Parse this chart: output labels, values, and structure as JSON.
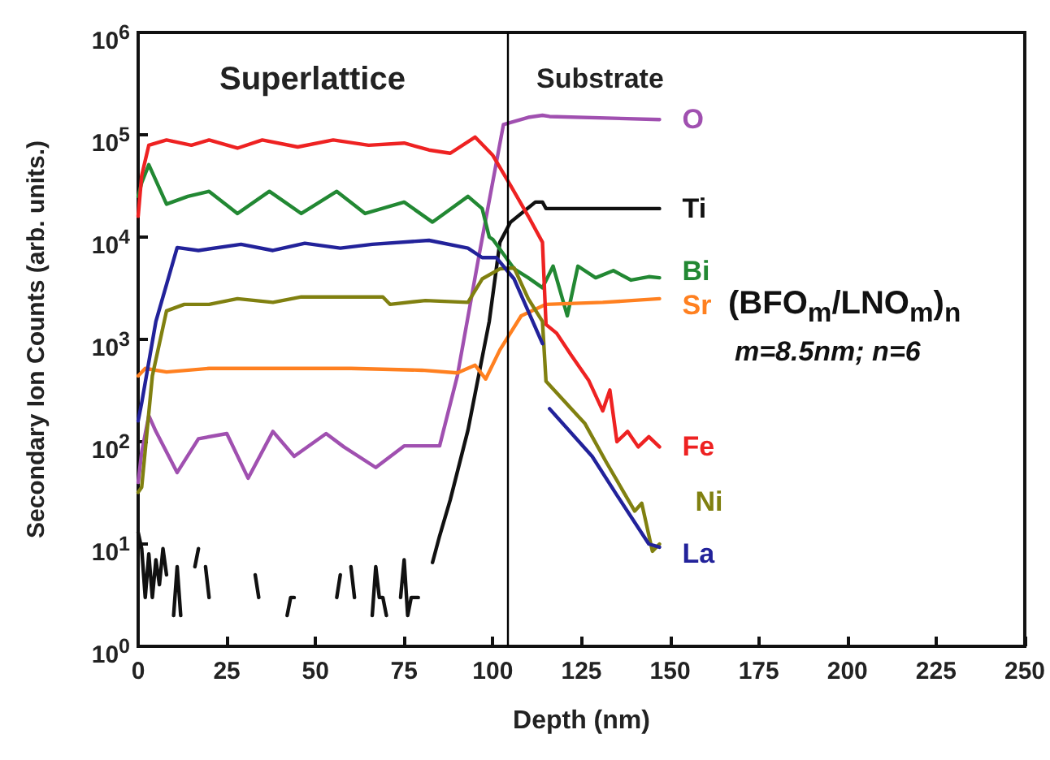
{
  "chart_data": {
    "type": "line",
    "xlabel": "Depth (nm)",
    "ylabel": "Secondary Ion Counts (arb. units.)",
    "log": "y",
    "grid": false,
    "legend": false,
    "marker": "none",
    "line_style": "solid",
    "xlim": [
      0,
      250
    ],
    "xticks": [
      0,
      25,
      50,
      75,
      100,
      125,
      150,
      175,
      200,
      225,
      250
    ],
    "ylim": [
      1,
      1000000
    ],
    "yticks": [
      {
        "value": 1,
        "label": "10$^{0}$"
      },
      {
        "value": 10,
        "label": "10$^{1}$"
      },
      {
        "value": 100,
        "label": "10$^{2}$"
      },
      {
        "value": 1000,
        "label": "10$^{3}$"
      },
      {
        "value": 10000,
        "label": "10$^{4}$"
      },
      {
        "value": 100000,
        "label": "10$^{5}$"
      },
      {
        "value": 1000000,
        "label": "10$^{6}$"
      }
    ],
    "ref_lines": [
      {
        "axis": "x",
        "value": 104,
        "color": "#000000",
        "line_style": "solid"
      }
    ],
    "annotations": [
      "Superlattice",
      "Substrate",
      "(BFO$_{m}$/LNO$_{m}$)$_{n}$",
      "m=8.5nm; n=6"
    ],
    "series": [
      {
        "name": "O",
        "color": "#a050b0",
        "x": [
          0,
          1,
          3,
          5,
          11,
          17,
          25,
          31,
          38,
          44,
          53,
          58,
          67,
          75,
          85,
          90,
          96,
          103,
          110,
          114,
          116,
          147
        ],
        "values": [
          40,
          79,
          180,
          126,
          50,
          107,
          120,
          44,
          126,
          72,
          120,
          89,
          56,
          91,
          91,
          440,
          6300,
          126000,
          148000,
          155000,
          151000,
          141000
        ]
      },
      {
        "name": "Ti",
        "color": "#111111",
        "x": [
          0,
          1,
          2,
          3,
          4,
          5,
          6,
          7,
          8,
          9,
          10,
          11,
          12,
          13,
          16,
          17,
          18,
          19,
          20,
          21,
          33,
          34,
          35,
          42,
          43,
          44,
          45,
          56,
          57,
          58,
          60,
          61,
          62,
          66,
          67,
          68,
          69,
          70,
          72,
          74,
          75,
          76,
          77,
          79,
          80,
          83,
          85,
          88,
          93,
          99,
          102,
          105,
          112,
          114,
          115,
          147
        ],
        "values": [
          13,
          9,
          3,
          8,
          3,
          7,
          4,
          9,
          5,
          null,
          2,
          6,
          2,
          null,
          6,
          9,
          null,
          6,
          3,
          null,
          5,
          3,
          null,
          2,
          3,
          3,
          null,
          3,
          5,
          null,
          6,
          3,
          null,
          2,
          6,
          3,
          3,
          2,
          null,
          3,
          7,
          2,
          3,
          3,
          null,
          6.6,
          12,
          27,
          130,
          1500,
          8900,
          14000,
          22000,
          22000,
          19000,
          19000
        ]
      },
      {
        "name": "Bi",
        "color": "#228833",
        "x": [
          0,
          1,
          3,
          8,
          14,
          20,
          28,
          37,
          46,
          56,
          64,
          75,
          83,
          93,
          97,
          99,
          100,
          106,
          110,
          114,
          117,
          121,
          124,
          129,
          134,
          139,
          144,
          147
        ],
        "values": [
          25000,
          34000,
          51000,
          21000,
          25000,
          28000,
          17000,
          28000,
          17000,
          28000,
          17000,
          22000,
          14000,
          25000,
          19000,
          10000,
          9500,
          4900,
          4000,
          3200,
          5200,
          1700,
          5200,
          4000,
          4700,
          3800,
          4100,
          4000
        ]
      },
      {
        "name": "Sr",
        "color": "#ff8020",
        "x": [
          0,
          2,
          8,
          20,
          40,
          60,
          80,
          90,
          95,
          98,
          102,
          108,
          115,
          131,
          147
        ],
        "values": [
          440,
          520,
          480,
          520,
          520,
          520,
          500,
          470,
          560,
          410,
          790,
          1700,
          2200,
          2300,
          2500
        ]
      },
      {
        "name": "Fe",
        "color": "#ee2222",
        "x": [
          0,
          1,
          3,
          8,
          15,
          20,
          28,
          35,
          45,
          55,
          65,
          75,
          82,
          88,
          95,
          100,
          105,
          110,
          114,
          115,
          118,
          122,
          127,
          131,
          133,
          135,
          138,
          141,
          144,
          147
        ],
        "values": [
          16000,
          40000,
          79000,
          89000,
          79000,
          89000,
          74000,
          89000,
          76000,
          89000,
          79000,
          83000,
          71000,
          66000,
          95000,
          63000,
          32000,
          16000,
          8900,
          1400,
          1150,
          710,
          400,
          200,
          320,
          100,
          126,
          89,
          112,
          89
        ]
      },
      {
        "name": "Ni",
        "color": "#808010",
        "x": [
          0,
          1,
          4,
          8,
          13,
          20,
          28,
          38,
          46,
          57,
          69,
          71,
          81,
          93,
          97,
          102,
          106,
          110,
          114,
          115,
          126,
          132,
          140,
          142,
          145,
          147
        ],
        "values": [
          32,
          36,
          440,
          1900,
          2200,
          2200,
          2500,
          2300,
          2600,
          2600,
          2600,
          2200,
          2400,
          2300,
          3900,
          4900,
          5000,
          2500,
          1500,
          390,
          150,
          63,
          21,
          25,
          8.5,
          10
        ]
      },
      {
        "name": "La",
        "color": "#22229a",
        "x": [
          0,
          1,
          5,
          11,
          17,
          29,
          38,
          47,
          57,
          66,
          82,
          93,
          97,
          101,
          106,
          114,
          115,
          116,
          128,
          135,
          144,
          147
        ],
        "values": [
          160,
          240,
          1500,
          7900,
          7400,
          8500,
          7400,
          8700,
          7800,
          8500,
          9300,
          7800,
          6300,
          6300,
          3900,
          910,
          null,
          210,
          72,
          30,
          10,
          9.3
        ]
      }
    ]
  }
}
